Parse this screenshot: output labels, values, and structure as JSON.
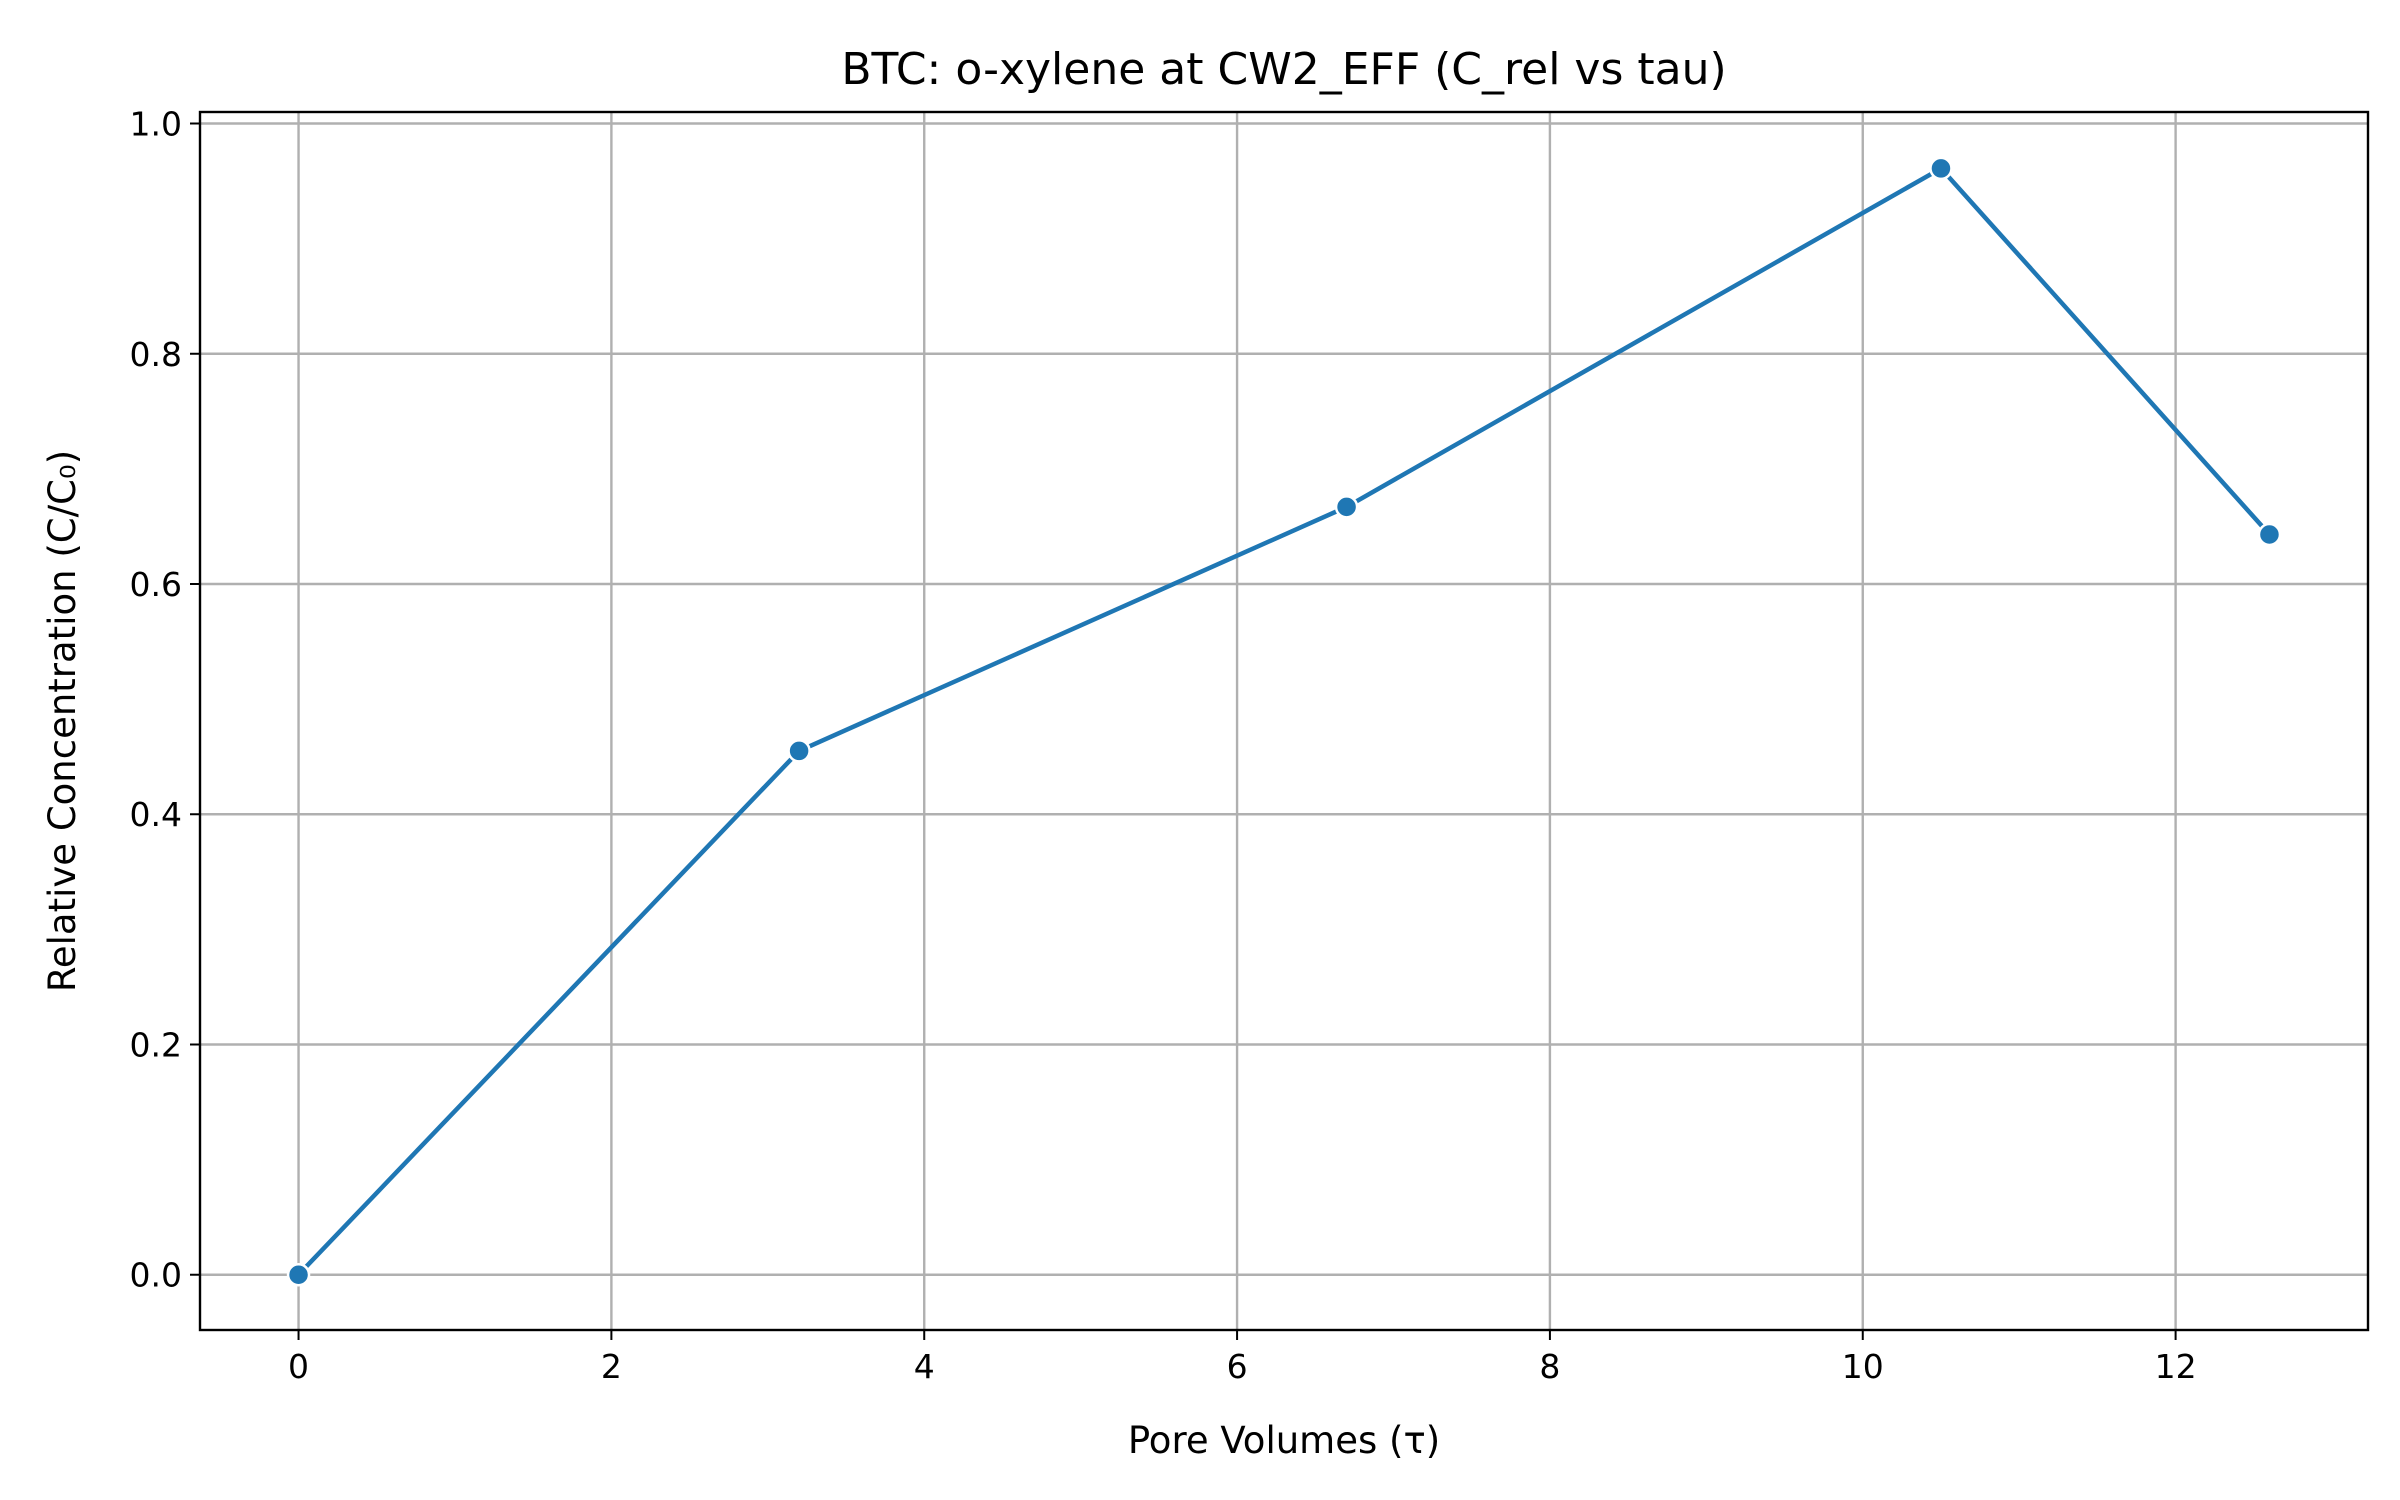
{
  "chart_data": {
    "type": "line",
    "title": "BTC: o-xylene at CW2_EFF (C_rel vs tau)",
    "xlabel": "Pore Volumes (τ)",
    "ylabel": "Relative Concentration (C/C₀)",
    "xlim": [
      -0.63,
      13.23
    ],
    "ylim": [
      -0.048,
      1.01
    ],
    "xticks": [
      0,
      2,
      4,
      6,
      8,
      10,
      12
    ],
    "xtick_labels": [
      "0",
      "2",
      "4",
      "6",
      "8",
      "10",
      "12"
    ],
    "yticks": [
      0.0,
      0.2,
      0.4,
      0.6,
      0.8,
      1.0
    ],
    "ytick_labels": [
      "0.0",
      "0.2",
      "0.4",
      "0.6",
      "0.8",
      "1.0"
    ],
    "grid": true,
    "series": [
      {
        "color": "#1f77b4",
        "marker": "circle",
        "x": [
          0,
          3.2,
          6.7,
          10.5,
          12.6
        ],
        "y": [
          0.0,
          0.455,
          0.667,
          0.961,
          0.643
        ]
      }
    ]
  }
}
